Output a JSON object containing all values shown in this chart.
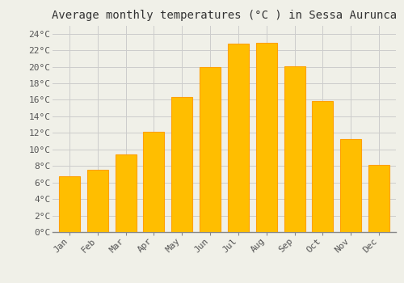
{
  "title": "Average monthly temperatures (°C ) in Sessa Aurunca",
  "months": [
    "Jan",
    "Feb",
    "Mar",
    "Apr",
    "May",
    "Jun",
    "Jul",
    "Aug",
    "Sep",
    "Oct",
    "Nov",
    "Dec"
  ],
  "values": [
    6.8,
    7.5,
    9.4,
    12.1,
    16.3,
    20.0,
    22.8,
    22.9,
    20.1,
    15.9,
    11.3,
    8.1
  ],
  "bar_color": "#FFBE00",
  "bar_edge_color": "#FFA000",
  "background_color": "#F0F0E8",
  "grid_color": "#CCCCCC",
  "ylim": [
    0,
    25
  ],
  "yticks": [
    0,
    2,
    4,
    6,
    8,
    10,
    12,
    14,
    16,
    18,
    20,
    22,
    24
  ],
  "ytick_labels": [
    "0°C",
    "2°C",
    "4°C",
    "6°C",
    "8°C",
    "10°C",
    "12°C",
    "14°C",
    "16°C",
    "18°C",
    "20°C",
    "22°C",
    "24°C"
  ],
  "title_fontsize": 10,
  "tick_fontsize": 8,
  "font_family": "monospace"
}
